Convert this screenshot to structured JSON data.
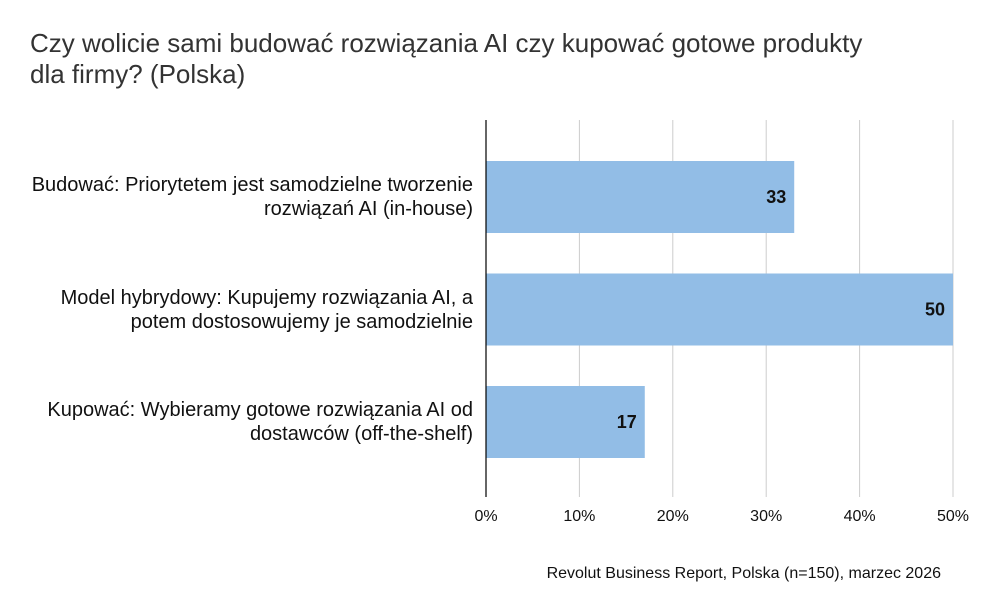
{
  "chart_data": {
    "type": "barh",
    "title": "Czy wolicie sami budować rozwiązania AI czy kupować gotowe produkty dla firmy? (Polska)",
    "categories": [
      "Budować: Priorytetem jest samodzielne tworzenie rozwiązań AI (in-house)",
      "Model hybrydowy: Kupujemy rozwiązania AI, a potem dostosowujemy je samodzielnie",
      "Kupować: Wybieramy gotowe rozwiązania AI od dostawców (off-the-shelf)"
    ],
    "values": [
      33,
      50,
      17
    ],
    "color": "#92bde6",
    "xlim": [
      0,
      50
    ],
    "xticks": [
      {
        "value": 0,
        "label": "0%"
      },
      {
        "value": 10,
        "label": "10%"
      },
      {
        "value": 20,
        "label": "20%"
      },
      {
        "value": 30,
        "label": "30%"
      },
      {
        "value": 40,
        "label": "40%"
      },
      {
        "value": 50,
        "label": "50%"
      }
    ],
    "grid": true,
    "source": "Revolut Business Report, Polska (n=150), marzec 2026"
  }
}
